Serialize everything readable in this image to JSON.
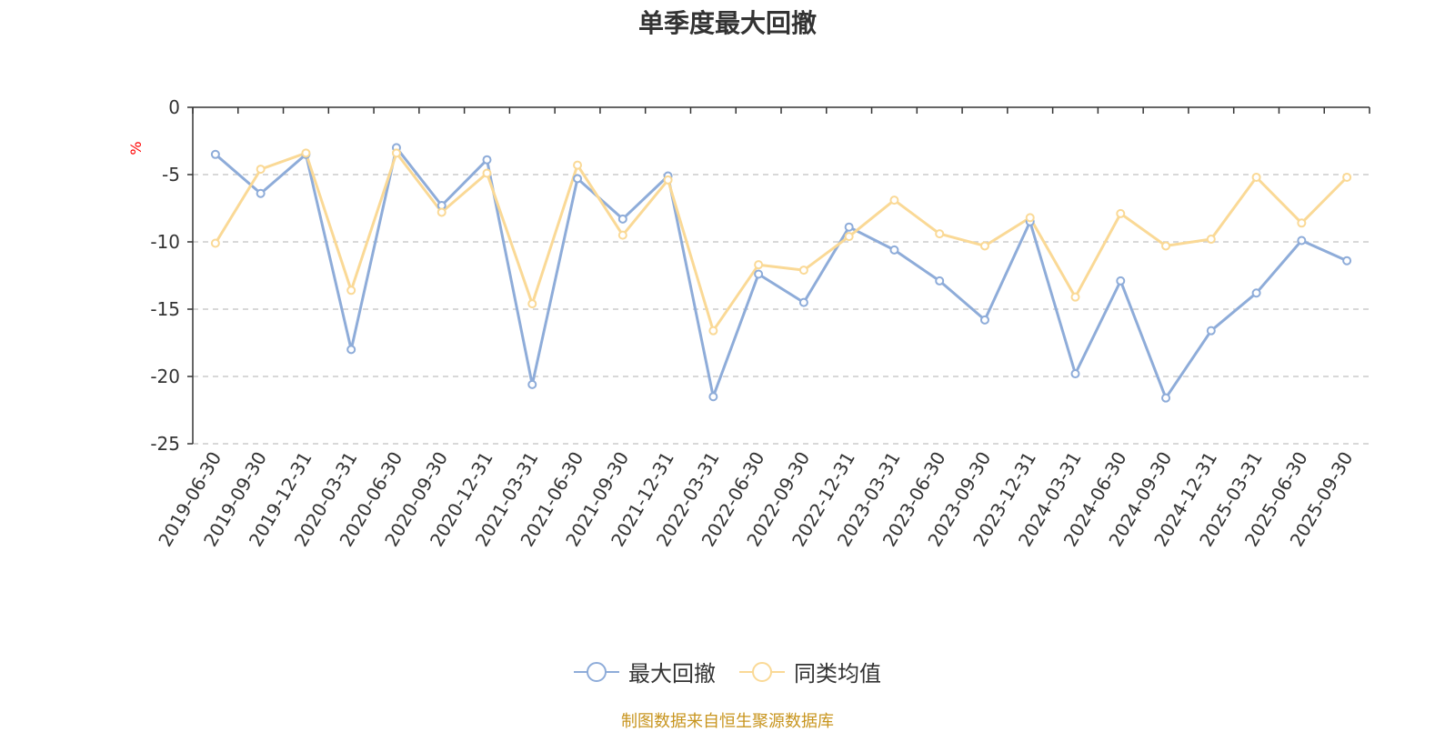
{
  "chart_data": {
    "type": "line",
    "title": "单季度最大回撤",
    "ylabel": "%",
    "ylim": [
      -25,
      0
    ],
    "yticks": [
      0,
      -5,
      -10,
      -15,
      -20,
      -25
    ],
    "grid": true,
    "legend_position": "bottom-center",
    "categories": [
      "2019-06-30",
      "2019-09-30",
      "2019-12-31",
      "2020-03-31",
      "2020-06-30",
      "2020-09-30",
      "2020-12-31",
      "2021-03-31",
      "2021-06-30",
      "2021-09-30",
      "2021-12-31",
      "2022-03-31",
      "2022-06-30",
      "2022-09-30",
      "2022-12-31",
      "2023-03-31",
      "2023-06-30",
      "2023-09-30",
      "2023-12-31",
      "2024-03-31",
      "2024-06-30",
      "2024-09-30",
      "2024-12-31",
      "2025-03-31",
      "2025-06-30",
      "2025-09-30"
    ],
    "series": [
      {
        "name": "最大回撤",
        "color": "#8eacd9",
        "values": [
          -3.5,
          -6.4,
          -3.5,
          -18.0,
          -3.0,
          -7.3,
          -3.9,
          -20.6,
          -5.3,
          -8.3,
          -5.1,
          -21.5,
          -12.4,
          -14.5,
          -8.9,
          -10.6,
          -12.9,
          -15.8,
          -8.5,
          -19.8,
          -12.9,
          -21.6,
          -16.6,
          -13.8,
          -9.9,
          -11.4
        ]
      },
      {
        "name": "同类均值",
        "color": "#fad996",
        "values": [
          -10.1,
          -4.6,
          -3.4,
          -13.6,
          -3.4,
          -7.8,
          -4.9,
          -14.6,
          -4.3,
          -9.5,
          -5.4,
          -16.6,
          -11.7,
          -12.1,
          -9.6,
          -6.9,
          -9.4,
          -10.3,
          -8.2,
          -14.1,
          -7.9,
          -10.3,
          -9.8,
          -5.2,
          -8.6,
          -5.2
        ]
      }
    ]
  },
  "source_note": "制图数据来自恒生聚源数据库"
}
